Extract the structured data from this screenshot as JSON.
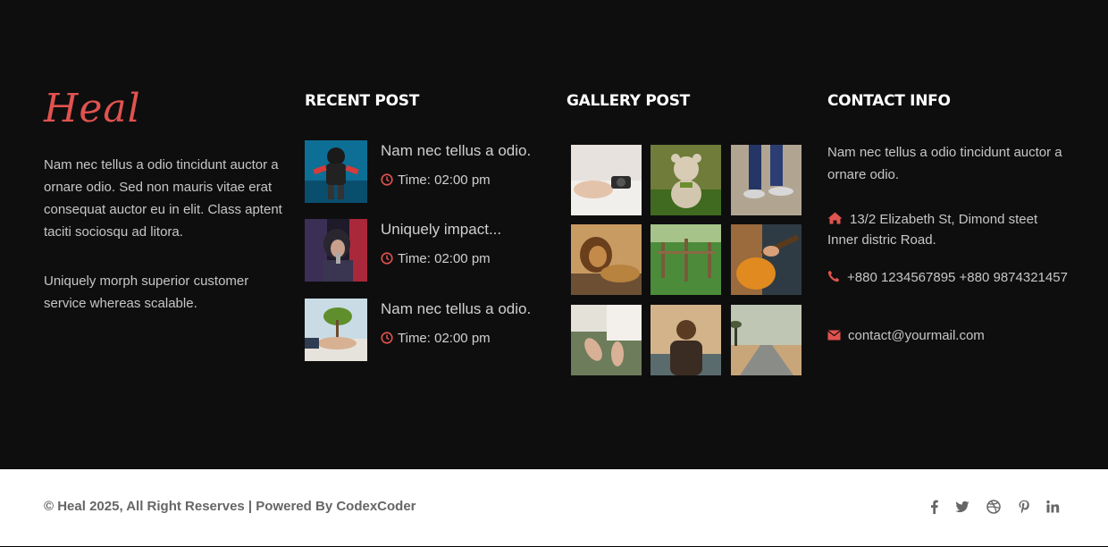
{
  "brand": {
    "logo": "Heal"
  },
  "about": {
    "paragraph1": "Nam nec tellus a odio tincidunt auctor a ornare odio. Sed non mauris vitae erat consequat auctor eu in elit. Class aptent taciti sociosqu ad litora.",
    "paragraph2": "Uniquely morph superior customer service whereas scalable."
  },
  "recent_post": {
    "heading": "RECENT POST",
    "posts": [
      {
        "title": "Nam nec tellus a odio.",
        "time": "Time: 02:00 pm"
      },
      {
        "title": "Uniquely impact...",
        "time": "Time: 02:00 pm"
      },
      {
        "title": "Nam nec tellus a odio.",
        "time": "Time: 02:00 pm"
      }
    ]
  },
  "gallery_post": {
    "heading": "GALLERY POST"
  },
  "contact": {
    "heading": "CONTACT INFO",
    "intro": "Nam nec tellus a odio tincidunt auctor a ornare odio.",
    "address": "13/2 Elizabeth St, Dimond steet Inner distric Road.",
    "phone": "+880 1234567895 +880 9874321457",
    "email": "contact@yourmail.com"
  },
  "footer": {
    "copyright": "© Heal 2025, All Right Reserves | Powered By CodexCoder"
  },
  "colors": {
    "accent": "#e0534f",
    "dark_bg": "#0f0e0f",
    "text": "#c6c6c6"
  },
  "icons": [
    "clock-icon",
    "home-icon",
    "phone-icon",
    "envelope-icon",
    "facebook-icon",
    "twitter-icon",
    "dribbble-icon",
    "pinterest-icon",
    "linkedin-icon"
  ]
}
